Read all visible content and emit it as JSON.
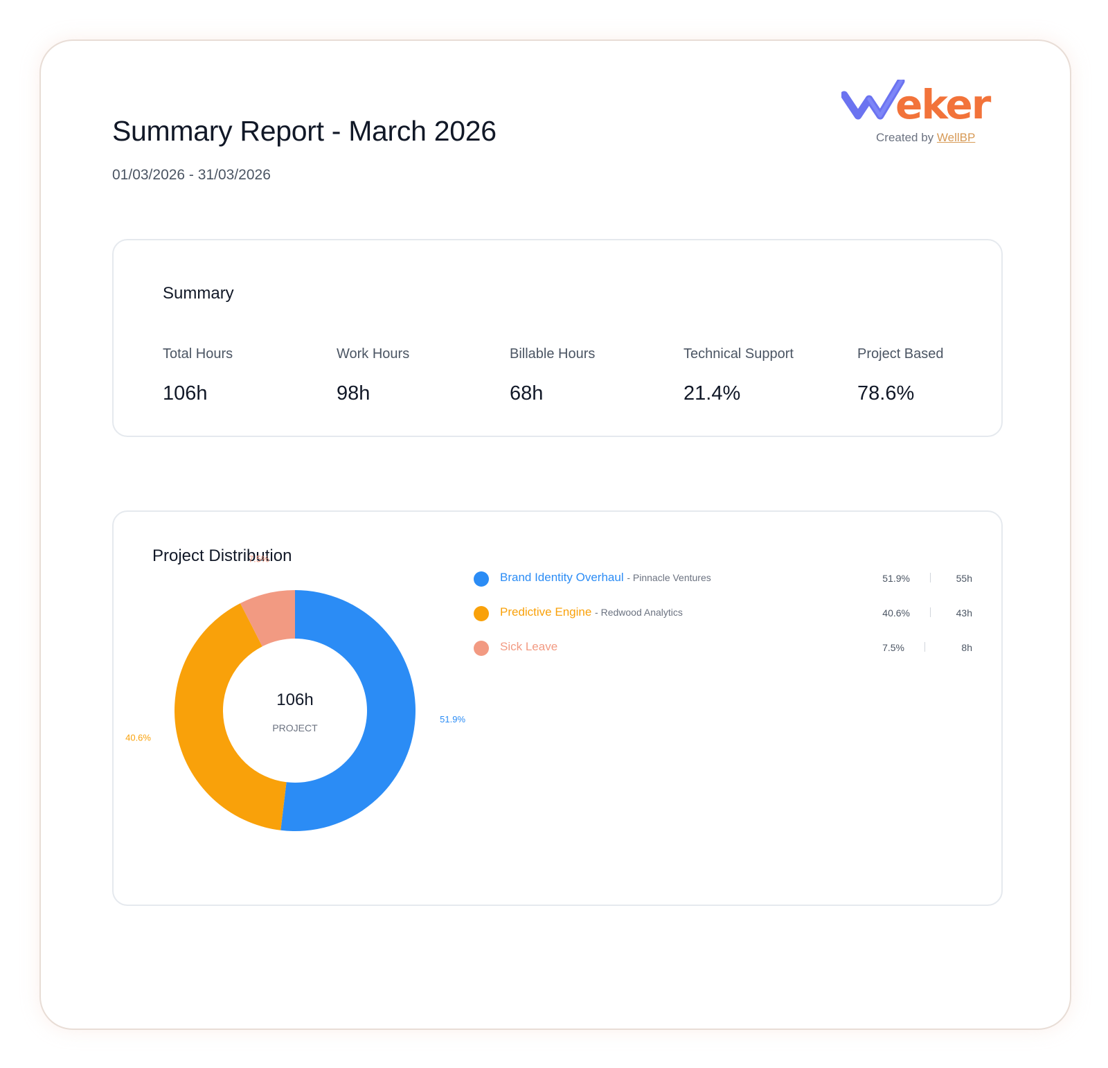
{
  "report": {
    "title": "Summary Report - March 2026",
    "date_range": "01/03/2026 - 31/03/2026"
  },
  "logo": {
    "wordmark": "Weker",
    "created_by_prefix": "Created by",
    "created_by_link": "WellBP",
    "colors": {
      "check": "#6b73f0",
      "text": "#f2733a",
      "link": "#d79a56"
    }
  },
  "summary": {
    "title": "Summary",
    "metrics": [
      {
        "label": "Total Hours",
        "value": "106h"
      },
      {
        "label": "Work Hours",
        "value": "98h"
      },
      {
        "label": "Billable Hours",
        "value": "68h"
      },
      {
        "label": "Technical Support",
        "value": "21.4%"
      },
      {
        "label": "Project Based",
        "value": "78.6%"
      }
    ]
  },
  "distribution": {
    "title": "Project Distribution",
    "center_value": "106h",
    "center_label": "PROJECT",
    "items": [
      {
        "name": "Brand Identity Overhaul",
        "client": "- Pinnacle Ventures",
        "pct": "51.9%",
        "hours": "55h",
        "color": "#2b8cf5"
      },
      {
        "name": "Predictive Engine",
        "client": "- Redwood Analytics",
        "pct": "40.6%",
        "hours": "43h",
        "color": "#f9a10a"
      },
      {
        "name": "Sick Leave",
        "client": "",
        "pct": "7.5%",
        "hours": "8h",
        "color": "#f29a82"
      }
    ]
  },
  "chart_data": {
    "type": "pie",
    "title": "Project Distribution",
    "categories": [
      "Brand Identity Overhaul",
      "Predictive Engine",
      "Sick Leave"
    ],
    "values": [
      51.9,
      40.6,
      7.5
    ],
    "hours": [
      55,
      43,
      8
    ],
    "data_labels": [
      "51.9%",
      "40.6%",
      "7.5%"
    ],
    "colors": [
      "#2b8cf5",
      "#f9a10a",
      "#f29a82"
    ],
    "center_text": "106h",
    "center_subtext": "PROJECT",
    "legend_position": "right"
  }
}
